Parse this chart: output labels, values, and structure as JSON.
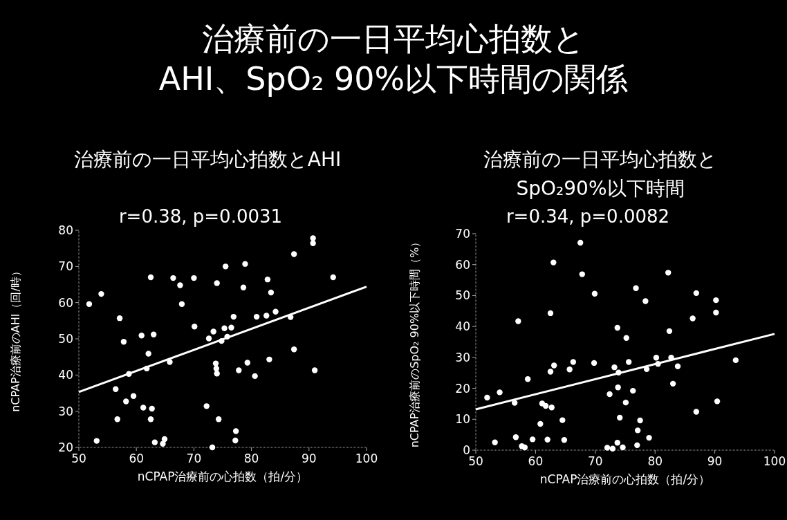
{
  "chart_data": [
    {
      "type": "scatter",
      "title": "治療前の一日平均心拍数と\nAHI、SpO₂ 90%以下時間の関係",
      "subtitle": "治療前の一日平均心拍数とAHI",
      "xlabel": "nCPAP治療前の心拍数（拍/分）",
      "ylabel": "nCPAP治療前のAHI（回/時）",
      "annotations": [
        "r=0.38, p=0.0031"
      ],
      "xlim": [
        50,
        100
      ],
      "ylim": [
        20,
        80
      ],
      "xticks": [
        50,
        60,
        70,
        80,
        90,
        100
      ],
      "yticks": [
        20,
        30,
        40,
        50,
        60,
        70,
        80
      ],
      "grid": false,
      "marker": "circle",
      "series": [
        {
          "color": "#ffffff",
          "x": [
            51.8,
            53.9,
            53.1,
            56.4,
            56.7,
            57.1,
            57.8,
            58.2,
            58.7,
            59.5,
            60.9,
            61.2,
            61.8,
            62.1,
            62.5,
            62.5,
            62.7,
            63.0,
            63.2,
            64.6,
            64.9,
            65.8,
            66.4,
            67.6,
            67.9,
            70.0,
            70.1,
            72.2,
            72.6,
            73.2,
            73.4,
            73.8,
            73.9,
            74.0,
            74.0,
            74.3,
            74.8,
            75.3,
            75.5,
            75.8,
            76.5,
            76.9,
            77.3,
            77.2,
            77.8,
            78.6,
            78.9,
            79.3,
            80.6,
            80.9,
            82.6,
            82.8,
            83.1,
            83.4,
            84.2,
            86.8,
            87.4,
            87.4,
            90.7,
            90.7,
            91.0,
            94.2
          ],
          "values": [
            59.6,
            62.4,
            21.8,
            36.1,
            27.8,
            55.7,
            49.2,
            32.7,
            40.3,
            34.2,
            50.9,
            31.0,
            41.8,
            45.9,
            67.0,
            27.8,
            30.7,
            51.2,
            21.4,
            21.0,
            22.3,
            43.6,
            66.8,
            64.8,
            59.6,
            66.8,
            53.4,
            31.4,
            50.1,
            20.0,
            52.0,
            43.2,
            41.8,
            40.4,
            65.4,
            27.8,
            49.4,
            52.9,
            70.0,
            50.6,
            53.1,
            56.1,
            24.5,
            21.9,
            41.3,
            64.2,
            70.7,
            43.4,
            39.7,
            56.1,
            56.4,
            66.4,
            44.3,
            62.8,
            57.5,
            56.0,
            47.1,
            73.4,
            77.8,
            76.4,
            41.3,
            67.0
          ]
        },
        {
          "type": "line",
          "color": "#ffffff",
          "line_style": "solid",
          "marker": "none",
          "x": [
            50,
            100
          ],
          "values": [
            35.3,
            64.4
          ]
        }
      ]
    },
    {
      "type": "scatter",
      "subtitle": "治療前の一日平均心拍数と\nSpO₂90%以下時間",
      "xlabel": "nCPAP治療前の心拍数（拍/分）",
      "ylabel": "nCPAP治療前のSpO₂ 90%以下時間（%）",
      "annotations": [
        "r=0.34, p=0.0082"
      ],
      "xlim": [
        50,
        100
      ],
      "ylim": [
        0,
        70
      ],
      "xticks": [
        50,
        60,
        70,
        80,
        90,
        100
      ],
      "yticks": [
        0,
        10,
        20,
        30,
        40,
        50,
        60,
        70
      ],
      "grid": false,
      "marker": "circle",
      "series": [
        {
          "color": "#ffffff",
          "x": [
            51.9,
            53.2,
            54.0,
            56.5,
            56.7,
            57.1,
            57.7,
            58.2,
            58.7,
            59.5,
            60.8,
            61.1,
            61.7,
            62.0,
            62.5,
            62.5,
            62.7,
            63.0,
            63.1,
            64.5,
            64.8,
            65.7,
            66.3,
            67.5,
            67.8,
            69.8,
            69.9,
            72.0,
            72.4,
            72.9,
            73.2,
            73.7,
            73.8,
            73.7,
            73.9,
            74.1,
            74.6,
            75.1,
            75.2,
            75.6,
            76.3,
            76.8,
            77.0,
            77.1,
            77.5,
            78.4,
            78.6,
            79.0,
            80.2,
            80.5,
            82.2,
            82.4,
            82.7,
            83.0,
            83.8,
            86.3,
            86.9,
            86.9,
            90.2,
            90.2,
            90.4,
            93.5
          ],
          "values": [
            17.0,
            2.5,
            18.7,
            15.3,
            4.2,
            41.7,
            1.3,
            0.9,
            23.0,
            3.5,
            8.5,
            15.1,
            14.3,
            3.4,
            44.3,
            25.4,
            13.8,
            60.7,
            27.4,
            9.7,
            3.3,
            26.1,
            28.5,
            67.1,
            56.9,
            28.2,
            50.6,
            0.8,
            18.1,
            0.5,
            26.8,
            39.6,
            20.3,
            2.4,
            25.1,
            10.5,
            0.9,
            15.4,
            36.3,
            28.5,
            19.2,
            52.4,
            1.6,
            6.4,
            9.6,
            48.2,
            26.2,
            4.0,
            29.9,
            27.9,
            57.4,
            38.5,
            29.9,
            21.5,
            27.1,
            42.6,
            12.4,
            50.8,
            48.5,
            44.5,
            15.8,
            29.1
          ]
        },
        {
          "type": "line",
          "color": "#ffffff",
          "line_style": "solid",
          "marker": "none",
          "x": [
            50,
            100
          ],
          "values": [
            13.2,
            37.6
          ]
        }
      ]
    }
  ]
}
